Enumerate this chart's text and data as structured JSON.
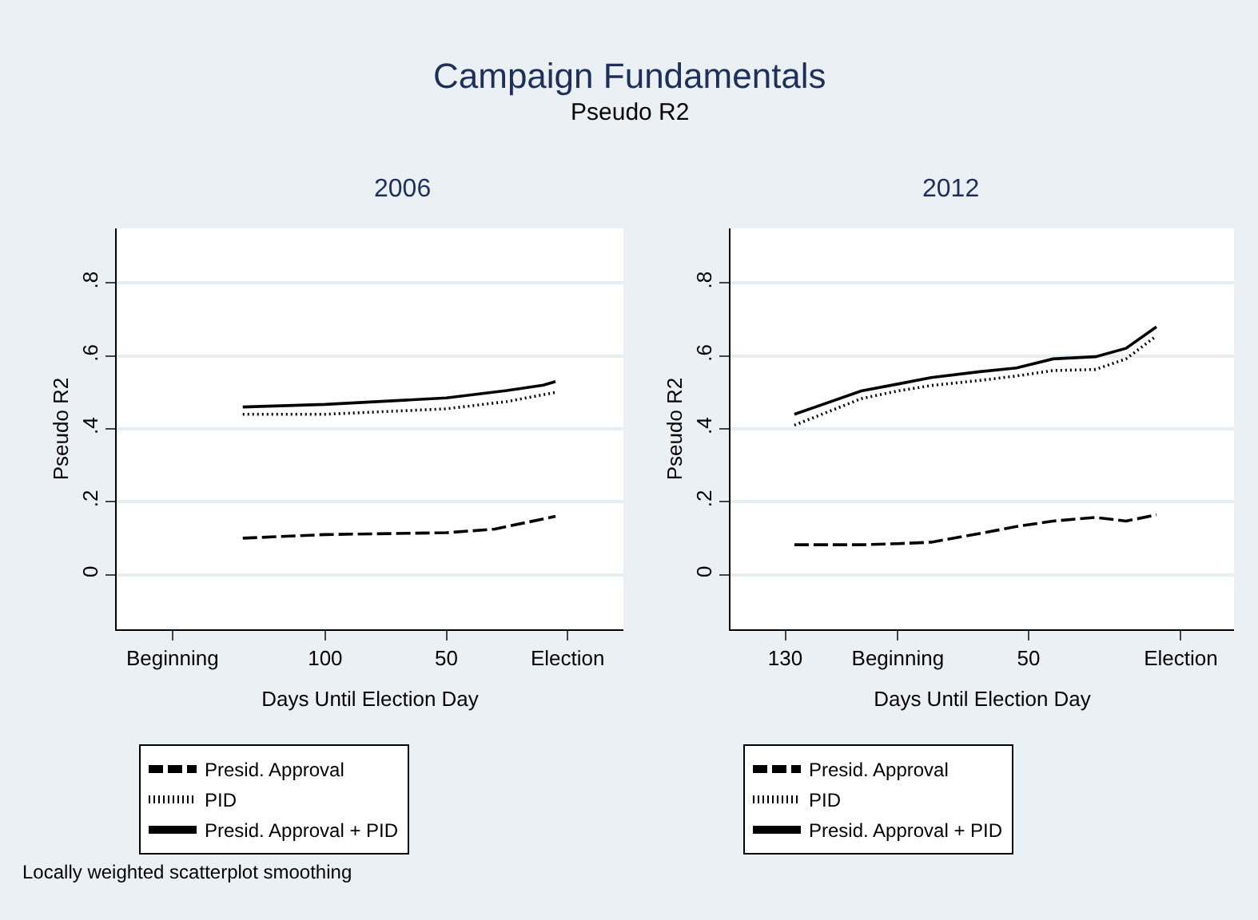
{
  "chart_data": [
    {
      "type": "line",
      "title": "2006",
      "xlabel": "Days Until Election Day",
      "ylabel": "Pseudo R2",
      "annotations": [
        "Campaign Fundamentals",
        "Pseudo R2",
        "Locally weighted scatterplot smoothing"
      ],
      "xlim": [
        186,
        -23
      ],
      "xticks": [
        {
          "value": 163,
          "label": "Beginning"
        },
        100,
        50,
        {
          "value": 0,
          "label": "Election"
        }
      ],
      "ylim": [
        -0.15,
        0.95
      ],
      "yticks": [
        0,
        {
          "value": 0.2,
          "label": ".2"
        },
        {
          "value": 0.4,
          "label": ".4"
        },
        {
          "value": 0.6,
          "label": ".6"
        },
        {
          "value": 0.8,
          "label": ".8"
        }
      ],
      "grid": "y",
      "legend": "bottom",
      "marker": "none",
      "series": [
        {
          "name": "Presid. Approval",
          "color": "#000000",
          "line_style": "dashed",
          "x": [
            134,
            100,
            50,
            30,
            5
          ],
          "values": [
            0.1,
            0.11,
            0.115,
            0.125,
            0.16
          ]
        },
        {
          "name": "PID",
          "color": "#000000",
          "line_style": "dotted",
          "x": [
            134,
            100,
            50,
            25,
            5
          ],
          "values": [
            0.44,
            0.44,
            0.455,
            0.475,
            0.5
          ]
        },
        {
          "name": "Presid. Approval + PID",
          "color": "#000000",
          "line_style": "solid",
          "x": [
            134,
            100,
            50,
            25,
            10,
            5
          ],
          "values": [
            0.46,
            0.467,
            0.485,
            0.505,
            0.52,
            0.53
          ]
        }
      ]
    },
    {
      "type": "line",
      "title": "2012",
      "xlabel": "Days Until Election Day",
      "ylabel": "Pseudo R2",
      "xlim": [
        148,
        -17.5
      ],
      "xticks": [
        130,
        {
          "value": 93,
          "label": "Beginning"
        },
        50,
        {
          "value": 0,
          "label": "Election"
        }
      ],
      "ylim": [
        -0.15,
        0.95
      ],
      "yticks": [
        0,
        {
          "value": 0.2,
          "label": ".2"
        },
        {
          "value": 0.4,
          "label": ".4"
        },
        {
          "value": 0.6,
          "label": ".6"
        },
        {
          "value": 0.8,
          "label": ".8"
        }
      ],
      "grid": "y",
      "legend": "bottom",
      "marker": "none",
      "series": [
        {
          "name": "Presid. Approval",
          "color": "#000000",
          "line_style": "dashed",
          "x": [
            127,
            105,
            93,
            82,
            66,
            54,
            42,
            28,
            18,
            8
          ],
          "values": [
            0.082,
            0.082,
            0.085,
            0.089,
            0.113,
            0.132,
            0.147,
            0.157,
            0.147,
            0.164
          ]
        },
        {
          "name": "PID",
          "color": "#000000",
          "line_style": "dotted",
          "x": [
            127,
            105,
            93,
            82,
            66,
            54,
            42,
            28,
            18,
            8
          ],
          "values": [
            0.41,
            0.483,
            0.504,
            0.519,
            0.533,
            0.545,
            0.56,
            0.563,
            0.592,
            0.655
          ]
        },
        {
          "name": "Presid. Approval + PID",
          "color": "#000000",
          "line_style": "solid",
          "x": [
            127,
            105,
            93,
            82,
            66,
            54,
            42,
            28,
            18,
            8
          ],
          "values": [
            0.44,
            0.504,
            0.523,
            0.541,
            0.557,
            0.567,
            0.592,
            0.598,
            0.621,
            0.68
          ]
        }
      ]
    }
  ]
}
